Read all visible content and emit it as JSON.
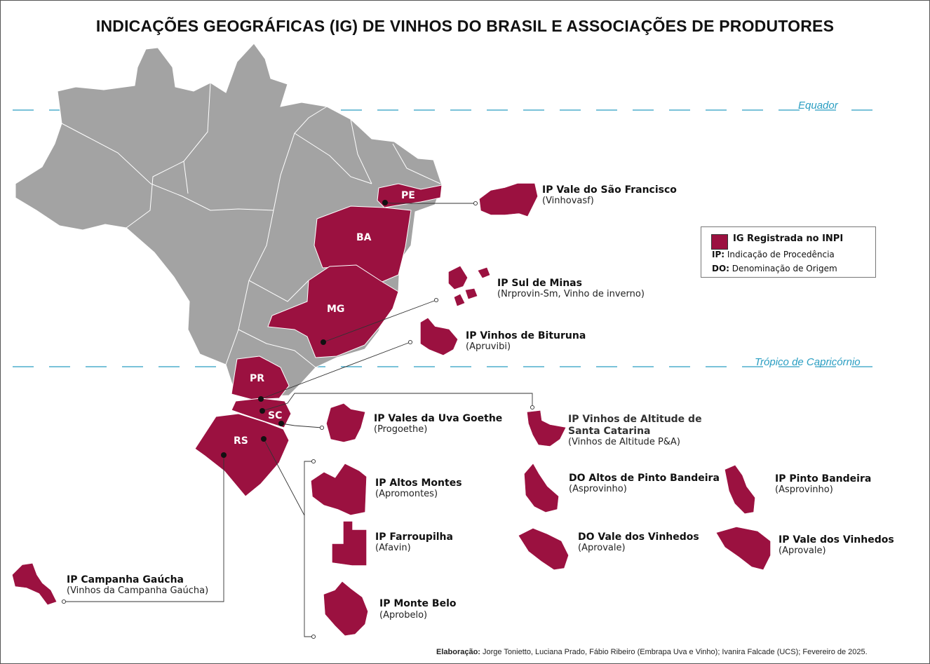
{
  "title": "INDICAÇÕES GEOGRÁFICAS (IG) DE VINHOS DO BRASIL E ASSOCIAÇÕES DE PRODUTORES",
  "latitudes": {
    "equator": "Equador",
    "tropic": "Trópico de Capricórnio"
  },
  "states": {
    "pe": "PE",
    "ba": "BA",
    "mg": "MG",
    "pr": "PR",
    "sc": "SC",
    "rs": "RS"
  },
  "legend": {
    "registered": "IG Registrada no INPI",
    "ip_abbr": "IP:",
    "ip_text": "Indicação de Procedência",
    "do_abbr": "DO:",
    "do_text": "Denominação de Origem"
  },
  "regions": {
    "sao_francisco": {
      "name": "IP Vale do São Francisco",
      "assoc": "(Vinhovasf)"
    },
    "sul_minas": {
      "name": "IP Sul de Minas",
      "assoc": "(Nrprovin-Sm, Vinho de inverno)"
    },
    "bituruna": {
      "name": "IP Vinhos de Bituruna",
      "assoc": "(Apruvibi)"
    },
    "goethe": {
      "name": "IP Vales da Uva Goethe",
      "assoc": "(Progoethe)"
    },
    "altitude_line1": "IP Vinhos de Altitude de",
    "altitude_line2": "Santa Catarina",
    "altitude_assoc": "(Vinhos de Altitude P&A)",
    "altos_montes": {
      "name": "IP Altos Montes",
      "assoc": "(Apromontes)"
    },
    "do_pinto": {
      "name": "DO Altos de Pinto Bandeira",
      "assoc": "(Asprovinho)"
    },
    "ip_pinto": {
      "name": "IP Pinto Bandeira",
      "assoc": "(Asprovinho)"
    },
    "farroupilha": {
      "name": "IP Farroupilha",
      "assoc": "(Afavin)"
    },
    "do_vinhedos": {
      "name": "DO Vale dos Vinhedos",
      "assoc": "(Aprovale)"
    },
    "ip_vinhedos": {
      "name": "IP Vale dos Vinhedos",
      "assoc": "(Aprovale)"
    },
    "campanha": {
      "name": "IP Campanha Gaúcha",
      "assoc": "(Vinhos da Campanha Gaúcha)"
    },
    "monte_belo": {
      "name": "IP Monte Belo",
      "assoc": "(Aprobelo)"
    }
  },
  "credits": {
    "label": "Elaboração:",
    "text": "Jorge Tonietto, Luciana Prado, Fábio Ribeiro (Embrapa Uva e Vinho); Ivanira Falcade (UCS); Fevereiro de 2025."
  },
  "colors": {
    "ig": "#9b1140",
    "land": "#a3a3a3",
    "latitude": "#2a9ec2"
  }
}
